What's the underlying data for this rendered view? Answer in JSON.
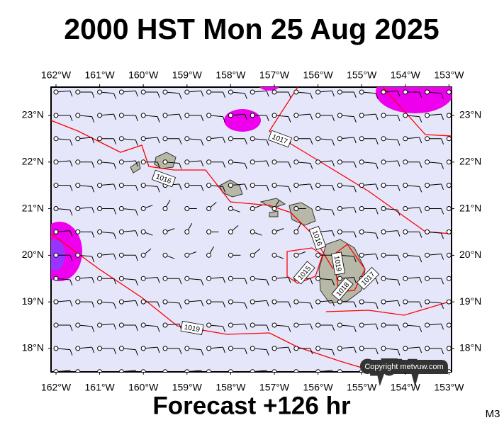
{
  "header": {
    "title": "2000 HST Mon 25 Aug 2025"
  },
  "map": {
    "longitude_labels": [
      "162°W",
      "161°W",
      "160°W",
      "159°W",
      "158°W",
      "157°W",
      "156°W",
      "155°W",
      "154°W",
      "153°W"
    ],
    "latitude_labels": [
      "23°N",
      "22°N",
      "21°N",
      "20°N",
      "19°N",
      "18°N"
    ],
    "isobar_labels": [
      "1017",
      "1016",
      "1016",
      "1015",
      "1019",
      "1018",
      "1017",
      "1019"
    ],
    "copyright": "Copyright metvuw.com"
  },
  "footer": {
    "forecast": "Forecast +126 hr",
    "model": "M3"
  }
}
